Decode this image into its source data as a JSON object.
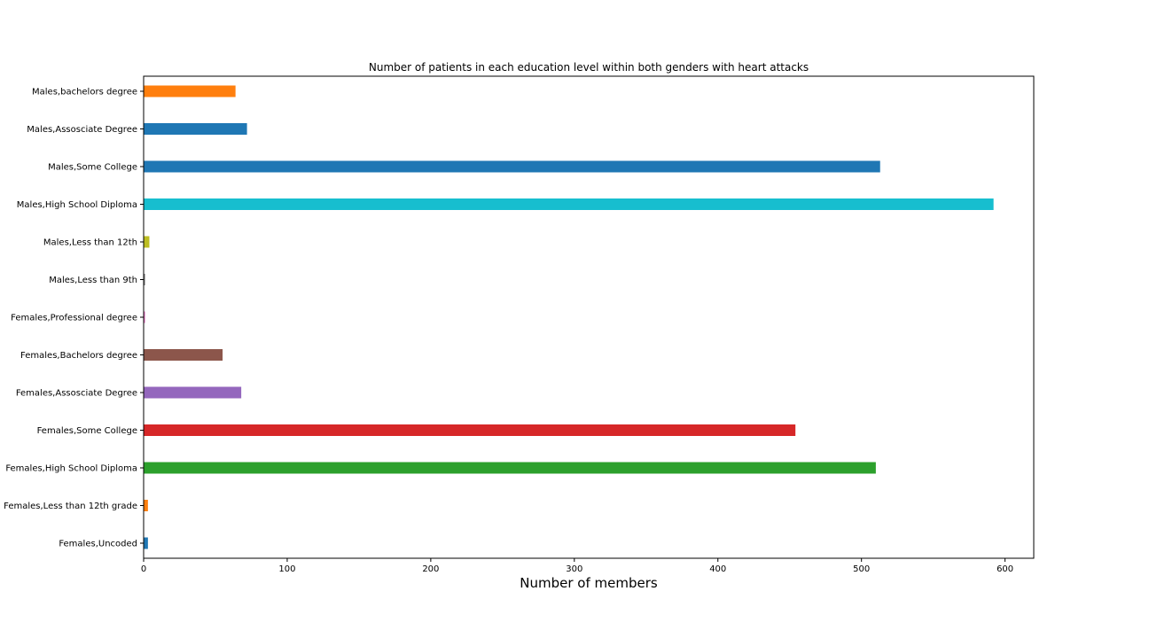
{
  "chart_data": {
    "type": "bar",
    "orientation": "horizontal",
    "title": "Number of patients in each education level within both genders with heart attacks",
    "xlabel": "Number of members",
    "ylabel": "",
    "xlim": [
      0,
      620
    ],
    "xticks": [
      0,
      100,
      200,
      300,
      400,
      500,
      600
    ],
    "grid": false,
    "categories": [
      "Males,bachelors degree",
      "Males,Assosciate Degree",
      "Males,Some College",
      "Males,High School Diploma",
      "Males,Less than 12th",
      "Males,Less than 9th",
      "Females,Professional degree",
      "Females,Bachelors degree",
      "Females,Assosciate Degree",
      "Females,Some College",
      "Females,High School Diploma",
      "Females,Less than 12th grade",
      "Females,Uncoded"
    ],
    "values": [
      64,
      72,
      513,
      592,
      4,
      1,
      1,
      55,
      68,
      454,
      510,
      3,
      3
    ],
    "colors": [
      "#ff7f0e",
      "#1f77b4",
      "#1f77b4",
      "#17becf",
      "#bcbd22",
      "#7f7f7f",
      "#e377c2",
      "#8c564b",
      "#9467bd",
      "#d62728",
      "#2ca02c",
      "#ff7f0e",
      "#1f77b4"
    ]
  }
}
